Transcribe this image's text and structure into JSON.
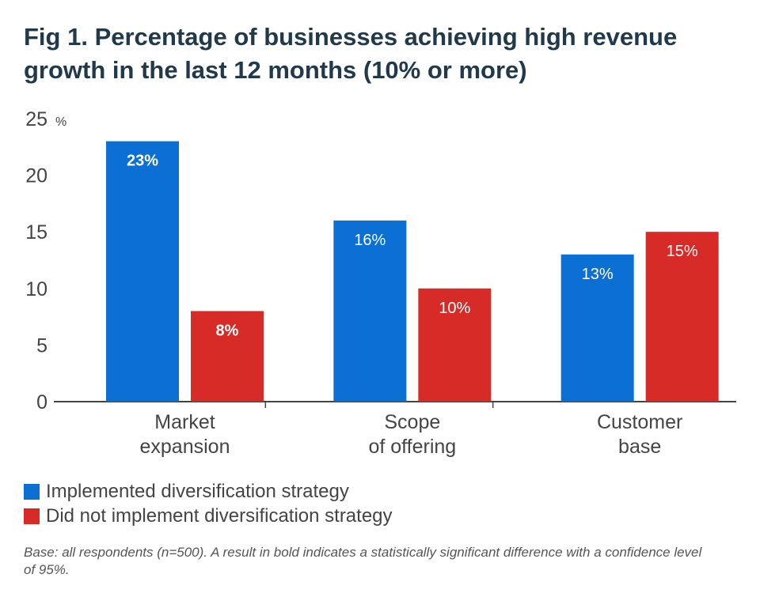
{
  "title": "Fig 1. Percentage of businesses achieving high revenue growth in the last 12 months (10% or more)",
  "footnote": "Base: all respondents (n=500). A result in bold indicates a statistically significant difference with a confidence level of 95%.",
  "colors": {
    "implemented": "#0b6fd4",
    "not_implemented": "#d62b27",
    "axis": "#444444",
    "text": "#444444",
    "title": "#203a4c"
  },
  "chart_data": {
    "type": "bar",
    "title": "Fig 1. Percentage of businesses achieving high revenue growth in the last 12 months (10% or more)",
    "ylabel": "%",
    "xlabel": "",
    "ylim": [
      0,
      25
    ],
    "yticks": [
      "0",
      "5",
      "10",
      "15",
      "20",
      "25"
    ],
    "grid": false,
    "legend_position": "bottom-left",
    "categories": [
      [
        "Market",
        "expansion"
      ],
      [
        "Scope",
        "of offering"
      ],
      [
        "Customer",
        "base"
      ]
    ],
    "series": [
      {
        "name": "Implemented diversification strategy",
        "values": [
          23,
          16,
          13
        ],
        "labels": [
          "23%",
          "16%",
          "13%"
        ],
        "bold": [
          true,
          false,
          false
        ]
      },
      {
        "name": "Did not implement diversification strategy",
        "values": [
          8,
          10,
          15
        ],
        "labels": [
          "8%",
          "10%",
          "15%"
        ],
        "bold": [
          true,
          false,
          false
        ]
      }
    ]
  }
}
